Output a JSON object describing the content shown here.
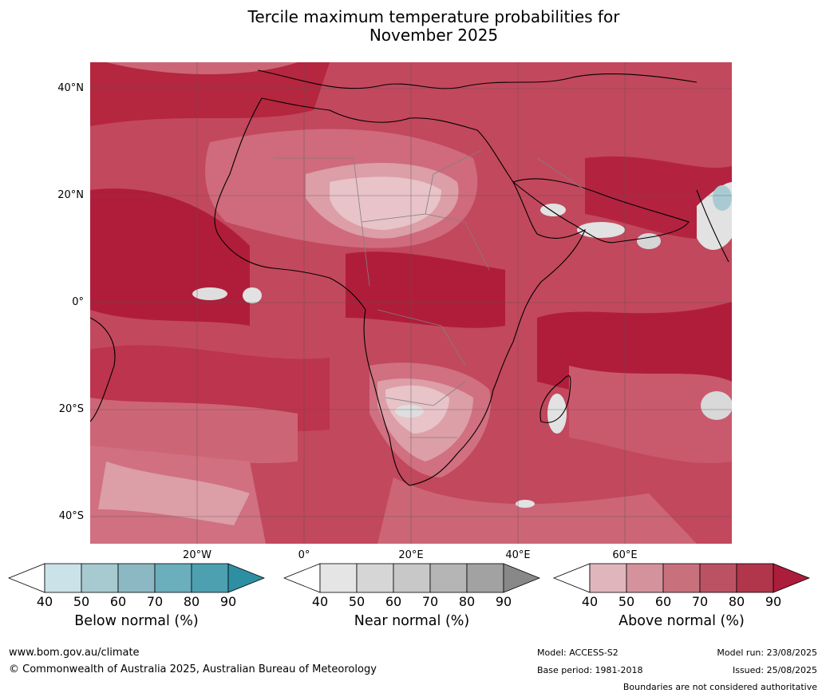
{
  "title_line1": "Tercile maximum temperature probabilities for",
  "title_line2": "November 2025",
  "lat_labels": [
    "40°N",
    "20°N",
    "0°",
    "20°S",
    "40°S"
  ],
  "lon_labels": [
    "20°W",
    "0°",
    "20°E",
    "40°E",
    "60°E"
  ],
  "colorbars": [
    {
      "label": "Below normal (%)",
      "ticks": [
        "40",
        "50",
        "60",
        "70",
        "80",
        "90"
      ],
      "colors": [
        "#ffffff",
        "#cae2e8",
        "#a7c9d0",
        "#8cb8c3",
        "#6baebc",
        "#4da0b0",
        "#2e8fa3"
      ]
    },
    {
      "label": "Near normal (%)",
      "ticks": [
        "40",
        "50",
        "60",
        "70",
        "80",
        "90"
      ],
      "colors": [
        "#ffffff",
        "#e5e5e5",
        "#d6d6d6",
        "#c8c8c8",
        "#b5b5b5",
        "#a2a2a2",
        "#888888"
      ]
    },
    {
      "label": "Above normal (%)",
      "ticks": [
        "40",
        "50",
        "60",
        "70",
        "80",
        "90"
      ],
      "colors": [
        "#ffffff",
        "#e0b6bc",
        "#d4939c",
        "#c8717d",
        "#bb5264",
        "#b2364b",
        "#ab1d3a"
      ]
    }
  ],
  "footer": {
    "website": "www.bom.gov.au/climate",
    "copyright": "© Commonwealth of Australia 2025, Australian Bureau of Meteorology",
    "model": "Model: ACCESS-S2",
    "base_period": "Base period: 1981-2018",
    "model_run": "Model run: 23/08/2025",
    "issued": "Issued: 25/08/2025",
    "disclaimer": "Boundaries are not considered authoritative"
  },
  "map_colors": {
    "above_90": "#b01d3b",
    "above_80": "#bd3850",
    "above_70": "#c75268",
    "above_60": "#d07080",
    "above_50": "#dc9ea7",
    "above_40": "#e8c3c8",
    "near_40": "#e2e2e2",
    "below_60": "#a9cad3",
    "gray_region": "#d0d0d0"
  }
}
